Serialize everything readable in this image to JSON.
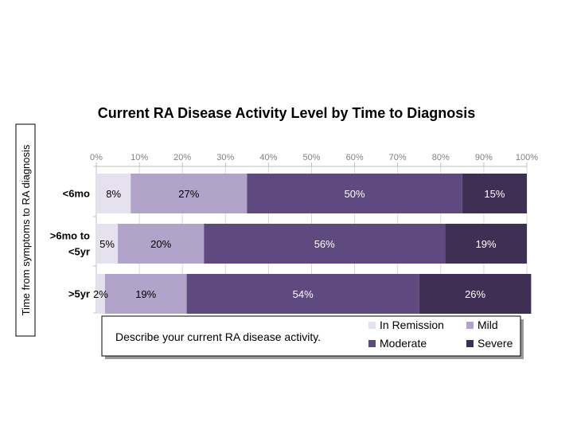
{
  "chart_data": {
    "type": "bar",
    "orientation": "horizontal",
    "stacked": true,
    "title": "Current RA Disease Activity Level by Time to Diagnosis",
    "ylabel": "Time from symptoms to RA diagnosis",
    "xlabel": "",
    "xlim": [
      0,
      100
    ],
    "xticks": [
      "0%",
      "10%",
      "20%",
      "30%",
      "40%",
      "50%",
      "60%",
      "70%",
      "80%",
      "90%",
      "100%"
    ],
    "categories": [
      [
        "<6mo"
      ],
      [
        ">6mo to",
        "<5yr"
      ],
      [
        ">5yr"
      ]
    ],
    "series": [
      {
        "name": "In Remission",
        "values": [
          8,
          5,
          2
        ],
        "color": "#e6e1ee",
        "label_color": "#000000"
      },
      {
        "name": "Mild",
        "values": [
          27,
          20,
          19
        ],
        "color": "#b1a3c9",
        "label_color": "#000000"
      },
      {
        "name": "Moderate",
        "values": [
          50,
          56,
          54
        ],
        "color": "#5e4a7e",
        "label_color": "#ffffff"
      },
      {
        "name": "Severe",
        "values": [
          15,
          19,
          26
        ],
        "color": "#3f2f54",
        "label_color": "#ffffff"
      }
    ],
    "legend": {
      "position": "bottom",
      "caption": "Describe your current RA disease activity."
    }
  }
}
